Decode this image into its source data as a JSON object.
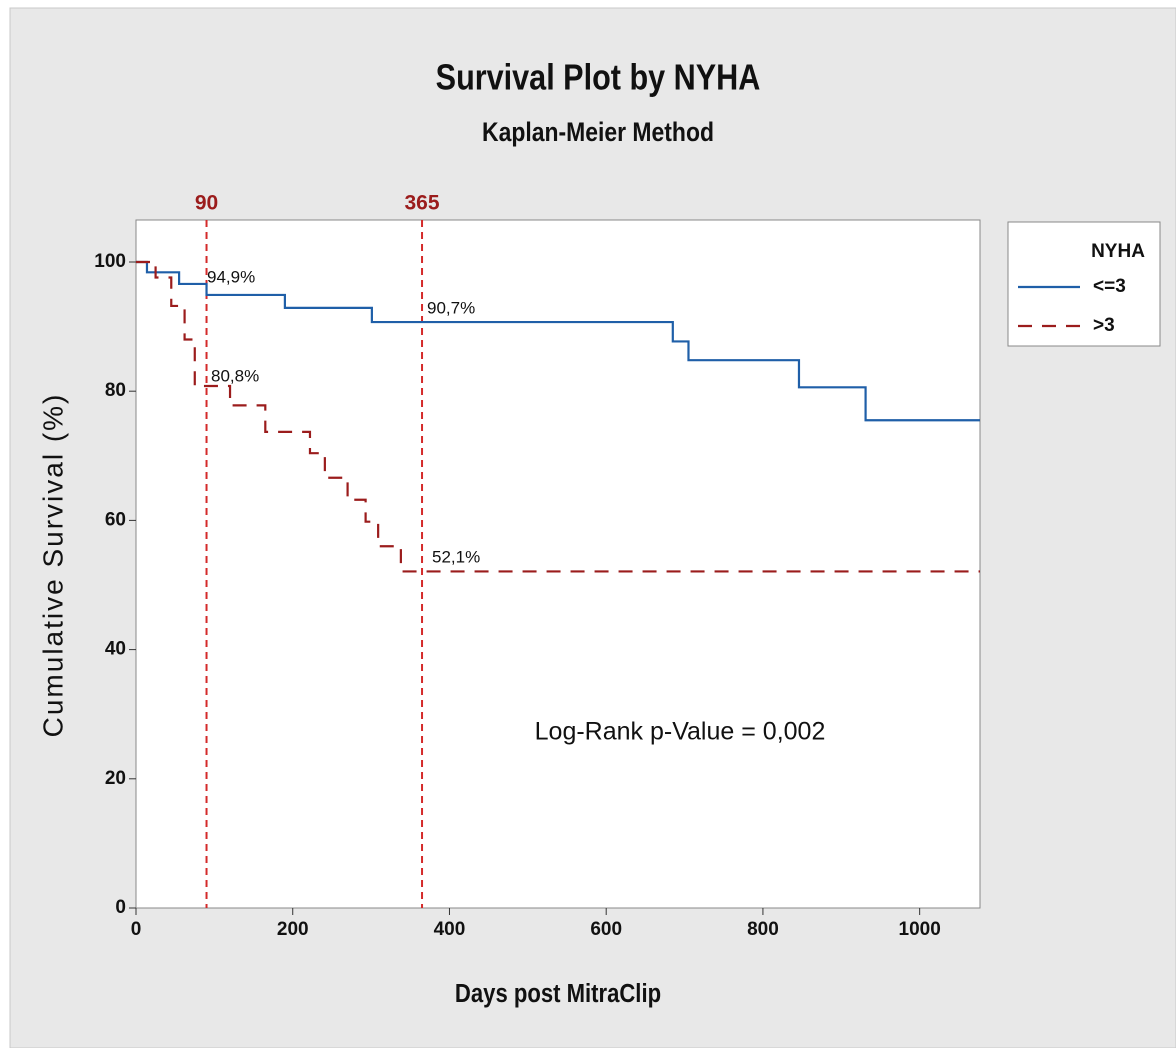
{
  "chart_data": {
    "type": "step",
    "title": "Survival Plot by NYHA",
    "subtitle": "Kaplan-Meier Method",
    "x_label": "Days post MitraClip",
    "y_label": "Cumulative Survival (%)",
    "xlim": [
      0,
      1077
    ],
    "ylim": [
      0,
      106.5
    ],
    "xticks": [
      0,
      200,
      400,
      600,
      800,
      1000
    ],
    "yticks": [
      0,
      20,
      40,
      60,
      80,
      100
    ],
    "legend_title": "NYHA",
    "legend": "right",
    "series": [
      {
        "name": "<=3",
        "color": "#1f5fa8",
        "dash": false,
        "x": [
          0,
          14,
          55,
          90,
          190,
          301,
          685,
          705,
          846,
          931,
          1077
        ],
        "values": [
          100,
          98.4,
          96.6,
          94.9,
          92.9,
          90.7,
          87.7,
          84.8,
          80.6,
          75.5,
          75.5
        ]
      },
      {
        "name": ">3",
        "color": "#9b1c1c",
        "dash": true,
        "x": [
          0,
          25,
          45,
          62,
          75,
          120,
          165,
          222,
          241,
          270,
          293,
          309,
          338,
          1077
        ],
        "values": [
          100,
          97.6,
          93.2,
          88.0,
          80.8,
          77.8,
          73.7,
          70.4,
          66.6,
          63.2,
          59.8,
          56.0,
          52.1,
          52.1
        ]
      }
    ],
    "reference_lines": [
      {
        "value": 90,
        "label": "90"
      },
      {
        "value": 365,
        "label": "365"
      }
    ],
    "reference_color": "#d42a2a",
    "annotations": [
      "94,9%",
      "90,7%",
      "80,8%",
      "52,1%",
      "Log-Rank p-Value = 0,002"
    ]
  }
}
